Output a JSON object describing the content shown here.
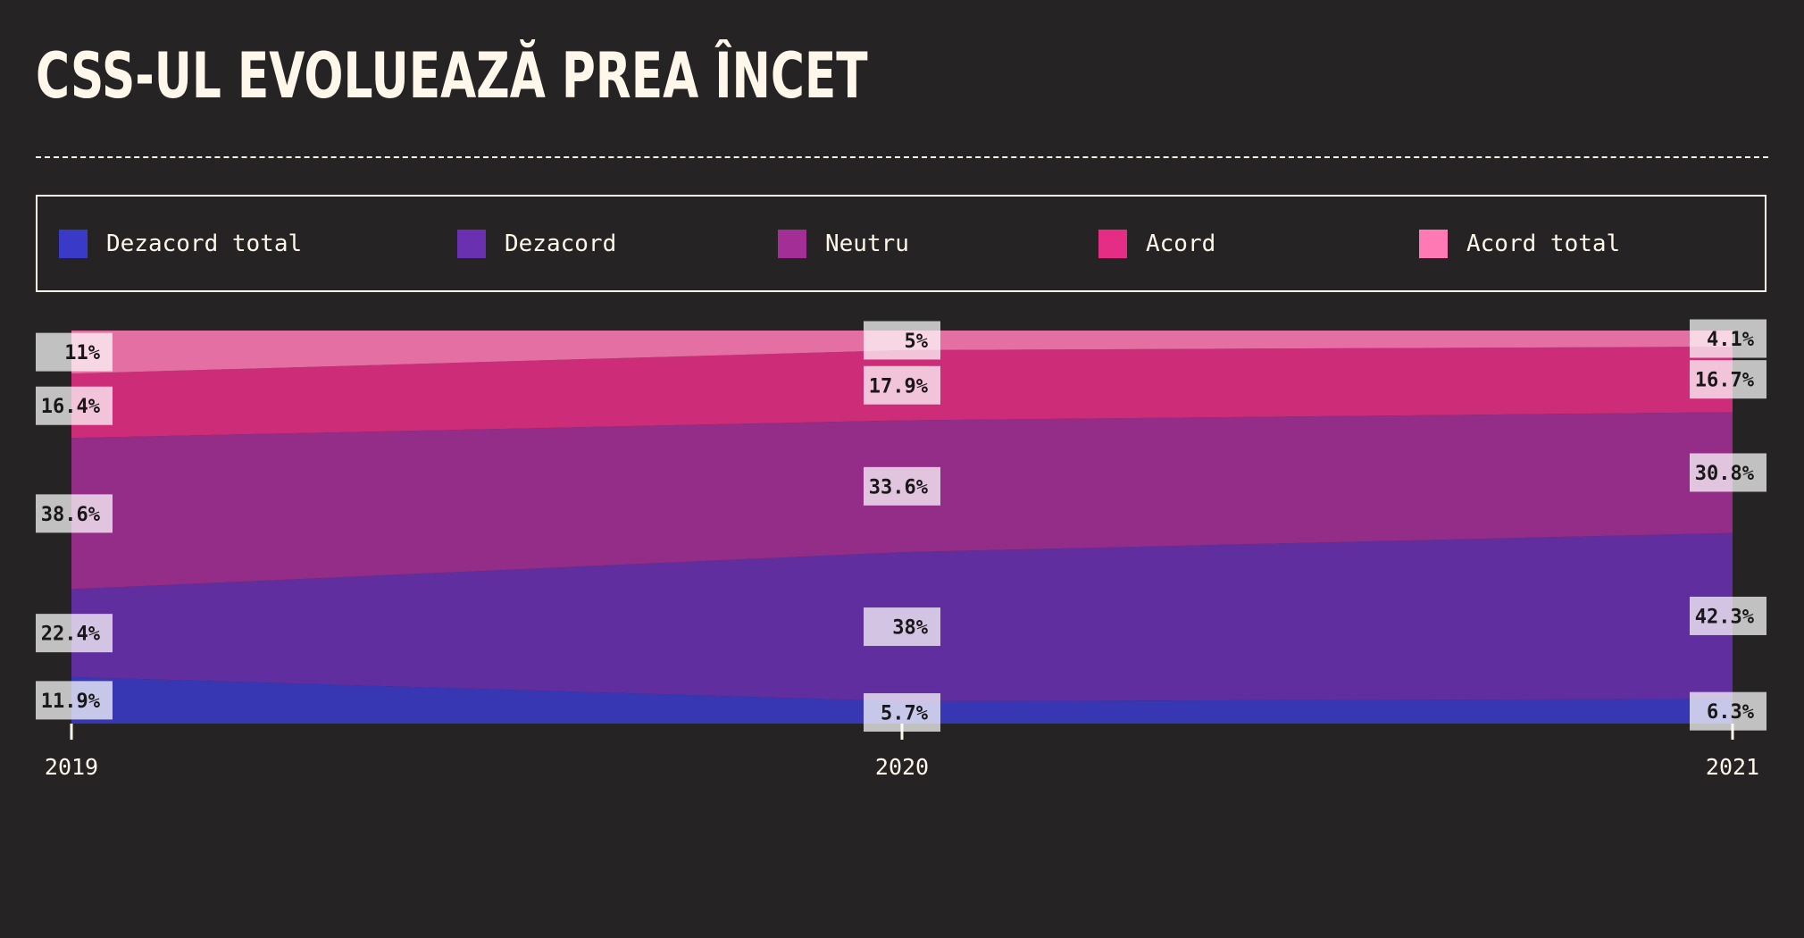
{
  "title": "CSS-UL EVOLUEAZĂ PREA ÎNCET",
  "chart_data": {
    "type": "area",
    "stacked": true,
    "normalized": true,
    "title": "CSS-UL EVOLUEAZĂ PREA ÎNCET",
    "x": [
      "2019",
      "2020",
      "2021"
    ],
    "series": [
      {
        "name": "Dezacord total",
        "color": "#3a3ac8",
        "values": [
          11.9,
          5.7,
          6.3
        ],
        "labels": [
          "11.9%",
          "5.7%",
          "6.3%"
        ]
      },
      {
        "name": "Dezacord",
        "color": "#6a30b0",
        "values": [
          22.4,
          38,
          42.3
        ],
        "labels": [
          "22.4%",
          "38%",
          "42.3%"
        ]
      },
      {
        "name": "Neutru",
        "color": "#a32f96",
        "values": [
          38.6,
          33.6,
          30.8
        ],
        "labels": [
          "38.6%",
          "33.6%",
          "30.8%"
        ]
      },
      {
        "name": "Acord",
        "color": "#e52d84",
        "values": [
          16.4,
          17.9,
          16.7
        ],
        "labels": [
          "16.4%",
          "17.9%",
          "16.7%"
        ]
      },
      {
        "name": "Acord total",
        "color": "#ff7ab4",
        "values": [
          11,
          5,
          4.1
        ],
        "labels": [
          "11%",
          "5%",
          "4.1%"
        ]
      }
    ],
    "ylim": [
      0,
      100
    ],
    "legend_position": "top",
    "grid": false
  }
}
